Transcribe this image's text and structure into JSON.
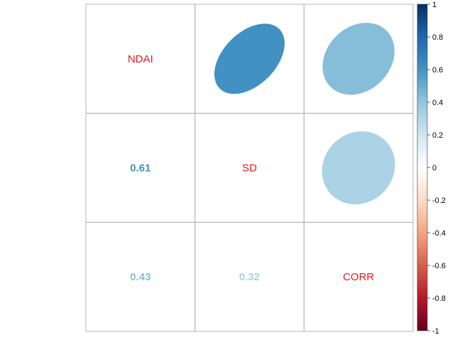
{
  "chart_data": {
    "type": "heatmap",
    "variables": [
      "NDAI",
      "SD",
      "CORR"
    ],
    "matrix": [
      [
        1.0,
        0.61,
        0.43
      ],
      [
        0.61,
        1.0,
        0.32
      ],
      [
        0.43,
        0.32,
        1.0
      ]
    ],
    "upper_method": "ellipse",
    "lower_method": "number",
    "lower_labels": [
      {
        "row": 1,
        "col": 0,
        "text": "0.61"
      },
      {
        "row": 2,
        "col": 0,
        "text": "0.43"
      },
      {
        "row": 2,
        "col": 1,
        "text": "0.32"
      }
    ],
    "diagonal_label_color": "#E41A1C",
    "colorbar": {
      "range": [
        -1,
        1
      ],
      "ticks": [
        "1",
        "0.8",
        "0.6",
        "0.4",
        "0.2",
        "0",
        "-0.2",
        "-0.4",
        "-0.6",
        "-0.8",
        "-1"
      ],
      "palette": [
        "#67001F",
        "#B2182B",
        "#D6604D",
        "#F4A582",
        "#FDDBC7",
        "#FFFFFF",
        "#D1E5F0",
        "#92C5DE",
        "#4393C3",
        "#2166AC",
        "#053061"
      ]
    },
    "grid": true
  }
}
